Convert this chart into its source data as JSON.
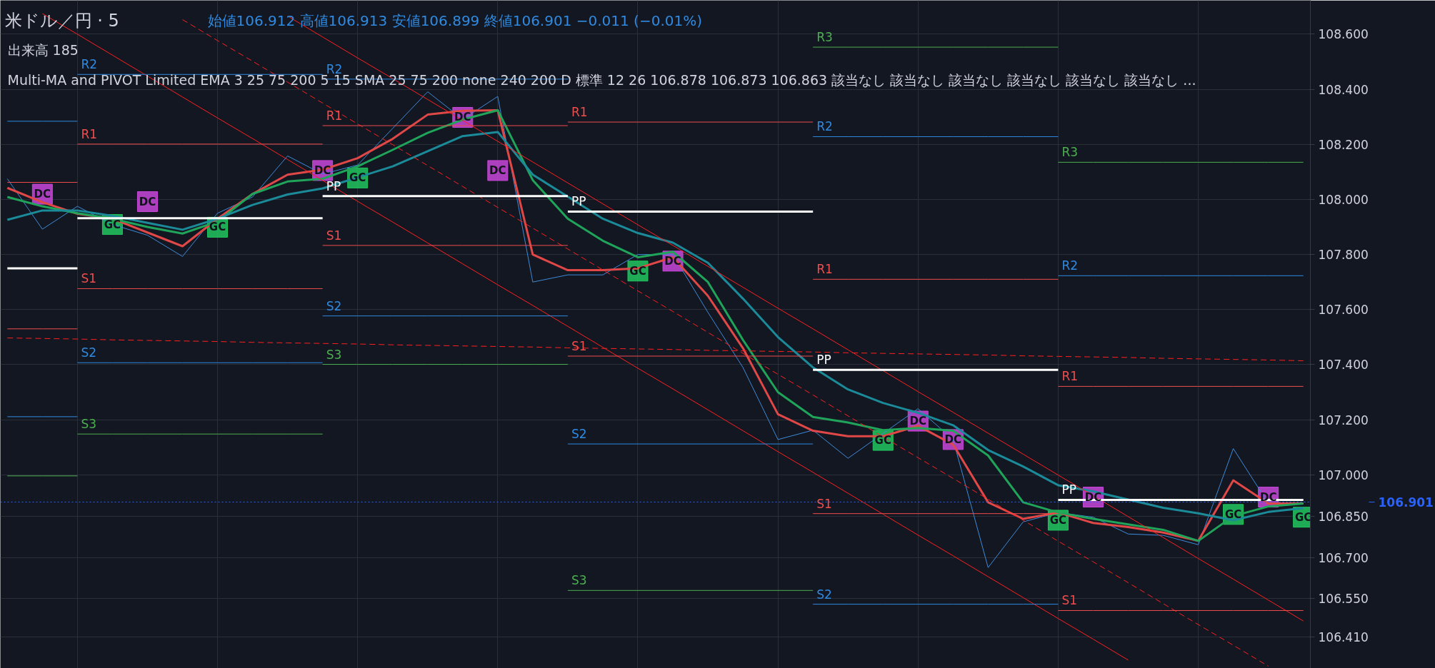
{
  "chart_data": {
    "type": "line",
    "title": "米ドル／円 · 5",
    "subtitle": "始値106.912 高値106.913 安値106.899 終値106.901 −0.011 (−0.01%)",
    "annotations": [
      "出来高 185",
      "Multi-MA and PIVOT Limited EMA 3 25 75 200 5 15 SMA 25 75 200 none 240 200 D 標準 12 26 106.878 106.873 106.863 該当なし 該当なし 該当なし 該当なし 該当なし 該当なし ..."
    ],
    "categories": [
      null,
      null,
      null,
      null,
      null,
      null,
      null,
      null,
      null,
      null,
      null,
      null,
      null,
      null,
      null,
      null,
      null,
      null,
      null,
      null,
      null,
      null,
      null,
      null,
      null,
      null,
      null,
      null,
      null,
      null,
      null,
      null,
      null,
      null,
      null,
      null,
      null,
      null
    ],
    "ylim": [
      106.297,
      108.723
    ],
    "yticks": [
      {
        "value": 106.41,
        "label": "106.410"
      },
      {
        "value": 106.55,
        "label": "106.550"
      },
      {
        "value": 106.7,
        "label": "106.700"
      },
      {
        "value": 106.85,
        "label": "106.850"
      },
      {
        "value": 107.0,
        "label": "107.000"
      },
      {
        "value": 107.2,
        "label": "107.200"
      },
      {
        "value": 107.4,
        "label": "107.400"
      },
      {
        "value": 107.6,
        "label": "107.600"
      },
      {
        "value": 107.8,
        "label": "107.800"
      },
      {
        "value": 108.0,
        "label": "108.000"
      },
      {
        "value": 108.2,
        "label": "108.200"
      },
      {
        "value": 108.4,
        "label": "108.400"
      },
      {
        "value": 108.6,
        "label": "108.600"
      }
    ],
    "tick_labels": "y",
    "grid": true,
    "ref_lines": [
      {
        "axis": "y",
        "value": 106.901,
        "label": "106.901",
        "color": "#2962ff",
        "line_style": "dotted"
      }
    ],
    "series": [
      {
        "color": "#3d8bd9",
        "values": [
          108.075,
          107.892,
          107.975,
          107.909,
          107.87,
          107.793,
          107.95,
          108.009,
          108.158,
          108.092,
          108.125,
          108.258,
          108.391,
          108.291,
          108.374,
          107.7,
          107.726,
          107.726,
          107.8,
          107.8,
          107.59,
          107.39,
          107.128,
          107.162,
          107.06,
          107.15,
          107.24,
          107.128,
          106.663,
          106.829,
          106.863,
          106.846,
          106.785,
          106.78,
          106.746,
          107.095,
          106.896,
          106.896
        ]
      },
      {
        "color": "#e04848",
        "values": [
          108.042,
          107.99,
          107.948,
          107.93,
          107.88,
          107.83,
          107.93,
          108.02,
          108.09,
          108.108,
          108.15,
          108.22,
          108.308,
          108.322,
          108.324,
          107.8,
          107.743,
          107.743,
          107.75,
          107.79,
          107.65,
          107.46,
          107.22,
          107.16,
          107.14,
          107.14,
          107.178,
          107.11,
          106.9,
          106.84,
          106.863,
          106.825,
          106.81,
          106.79,
          106.76,
          106.98,
          106.896,
          106.896
        ]
      },
      {
        "color": "#1fa45a",
        "values": [
          108.009,
          107.975,
          107.95,
          107.93,
          107.9,
          107.876,
          107.92,
          108.02,
          108.065,
          108.075,
          108.12,
          108.18,
          108.242,
          108.29,
          108.324,
          108.07,
          107.93,
          107.85,
          107.79,
          107.81,
          107.7,
          107.49,
          107.3,
          107.21,
          107.19,
          107.162,
          107.17,
          107.16,
          107.07,
          106.9,
          106.863,
          106.84,
          106.82,
          106.8,
          106.76,
          106.85,
          106.885,
          106.896
        ]
      },
      {
        "color": "#1b8a99",
        "values": [
          107.926,
          107.96,
          107.96,
          107.94,
          107.915,
          107.89,
          107.93,
          107.98,
          108.018,
          108.04,
          108.08,
          108.12,
          108.175,
          108.23,
          108.245,
          108.09,
          108.01,
          107.93,
          107.878,
          107.843,
          107.77,
          107.64,
          107.5,
          107.39,
          107.31,
          107.261,
          107.225,
          107.18,
          107.09,
          107.03,
          106.962,
          106.94,
          106.91,
          106.88,
          106.86,
          106.835,
          106.865,
          106.879
        ]
      },
      {
        "color": "#ff1f1f",
        "values": [
          null,
          108.675,
          108.6,
          108.524,
          108.448,
          108.372,
          108.296,
          108.221,
          108.145,
          108.069,
          107.993,
          107.918,
          107.842,
          107.766,
          107.69,
          107.615,
          107.539,
          107.463,
          107.387,
          107.312,
          107.236,
          107.16,
          107.084,
          107.009,
          106.933,
          106.857,
          106.781,
          106.706,
          106.63,
          106.554,
          106.478,
          106.403,
          106.327,
          null,
          null,
          null,
          null,
          null
        ]
      },
      {
        "color": "#ff1f1f",
        "values": [
          null,
          null,
          null,
          null,
          null,
          null,
          null,
          null,
          108.666,
          108.59,
          108.514,
          108.439,
          108.363,
          108.287,
          108.211,
          108.136,
          108.06,
          107.984,
          107.908,
          107.833,
          107.757,
          107.681,
          107.605,
          107.53,
          107.454,
          107.378,
          107.302,
          107.227,
          107.151,
          107.075,
          106.999,
          106.924,
          106.848,
          106.772,
          106.696,
          106.621,
          106.545,
          106.469
        ]
      },
      {
        "color": "#ff1f1f",
        "line_style": "dashed",
        "values": [
          null,
          null,
          null,
          null,
          null,
          108.653,
          108.577,
          108.502,
          108.426,
          108.35,
          108.274,
          108.199,
          108.123,
          108.047,
          107.971,
          107.896,
          107.82,
          107.744,
          107.668,
          107.593,
          107.517,
          107.441,
          107.365,
          107.29,
          107.214,
          107.138,
          107.062,
          106.987,
          106.911,
          106.835,
          106.759,
          106.684,
          106.608,
          106.532,
          106.456,
          106.381,
          106.305,
          null
        ]
      },
      {
        "color": "#ff1f1f",
        "line_style": "dashed",
        "values": [
          107.497,
          107.495,
          107.493,
          107.49,
          107.488,
          107.486,
          107.484,
          107.481,
          107.479,
          107.477,
          107.475,
          107.472,
          107.47,
          107.468,
          107.466,
          107.464,
          107.461,
          107.459,
          107.457,
          107.455,
          107.452,
          107.45,
          107.448,
          107.446,
          107.443,
          107.441,
          107.439,
          107.437,
          107.435,
          107.432,
          107.43,
          107.428,
          107.426,
          107.423,
          107.421,
          107.419,
          107.417,
          107.414
        ]
      },
      {
        "color": "#ffffff",
        "values": [
          107.75,
          107.75,
          107.75,
          null,
          null,
          null,
          null,
          null,
          null,
          null,
          null,
          null,
          null,
          null,
          null,
          null,
          null,
          null,
          null,
          null,
          null,
          null,
          null,
          null,
          null,
          null,
          null,
          null,
          null,
          null,
          null,
          null,
          null,
          null,
          null,
          null,
          null,
          null
        ]
      },
      {
        "color": "#f04d4d",
        "values": [
          108.062,
          108.062,
          108.062,
          null,
          null,
          null,
          null,
          null,
          null,
          null,
          null,
          null,
          null,
          null,
          null,
          null,
          null,
          null,
          null,
          null,
          null,
          null,
          null,
          null,
          null,
          null,
          null,
          null,
          null,
          null,
          null,
          null,
          null,
          null,
          null,
          null,
          null,
          null
        ]
      },
      {
        "color": "#f04d4d",
        "values": [
          107.53,
          107.53,
          107.53,
          null,
          null,
          null,
          null,
          null,
          null,
          null,
          null,
          null,
          null,
          null,
          null,
          null,
          null,
          null,
          null,
          null,
          null,
          null,
          null,
          null,
          null,
          null,
          null,
          null,
          null,
          null,
          null,
          null,
          null,
          null,
          null,
          null,
          null,
          null
        ]
      },
      {
        "color": "#2f8ae0",
        "values": [
          108.284,
          108.284,
          108.284,
          null,
          null,
          null,
          null,
          null,
          null,
          null,
          null,
          null,
          null,
          null,
          null,
          null,
          null,
          null,
          null,
          null,
          null,
          null,
          null,
          null,
          null,
          null,
          null,
          null,
          null,
          null,
          null,
          null,
          null,
          null,
          null,
          null,
          null,
          null
        ]
      },
      {
        "color": "#2f8ae0",
        "values": [
          107.211,
          107.211,
          107.211,
          null,
          null,
          null,
          null,
          null,
          null,
          null,
          null,
          null,
          null,
          null,
          null,
          null,
          null,
          null,
          null,
          null,
          null,
          null,
          null,
          null,
          null,
          null,
          null,
          null,
          null,
          null,
          null,
          null,
          null,
          null,
          null,
          null,
          null,
          null
        ]
      },
      {
        "color": "#4caf50",
        "values": [
          106.996,
          106.996,
          106.996,
          null,
          null,
          null,
          null,
          null,
          null,
          null,
          null,
          null,
          null,
          null,
          null,
          null,
          null,
          null,
          null,
          null,
          null,
          null,
          null,
          null,
          null,
          null,
          null,
          null,
          null,
          null,
          null,
          null,
          null,
          null,
          null,
          null,
          null,
          null
        ]
      },
      {
        "name": "R2",
        "color": "#2f8ae0",
        "values": [
          null,
          null,
          108.454,
          108.454,
          108.454,
          108.454,
          108.454,
          108.454,
          108.454,
          108.454,
          null,
          null,
          null,
          null,
          null,
          null,
          null,
          null,
          null,
          null,
          null,
          null,
          null,
          null,
          null,
          null,
          null,
          null,
          null,
          null,
          null,
          null,
          null,
          null,
          null,
          null,
          null,
          null
        ]
      },
      {
        "name": "R1",
        "color": "#f04d4d",
        "values": [
          null,
          null,
          108.201,
          108.201,
          108.201,
          108.201,
          108.201,
          108.201,
          108.201,
          108.201,
          null,
          null,
          null,
          null,
          null,
          null,
          null,
          null,
          null,
          null,
          null,
          null,
          null,
          null,
          null,
          null,
          null,
          null,
          null,
          null,
          null,
          null,
          null,
          null,
          null,
          null,
          null,
          null
        ]
      },
      {
        "color": "#ffffff",
        "values": [
          null,
          null,
          107.932,
          107.932,
          107.932,
          107.932,
          107.932,
          107.932,
          107.932,
          107.932,
          null,
          null,
          null,
          null,
          null,
          null,
          null,
          null,
          null,
          null,
          null,
          null,
          null,
          null,
          null,
          null,
          null,
          null,
          null,
          null,
          null,
          null,
          null,
          null,
          null,
          null,
          null,
          null
        ]
      },
      {
        "name": "S1",
        "color": "#f04d4d",
        "values": [
          null,
          null,
          107.676,
          107.676,
          107.676,
          107.676,
          107.676,
          107.676,
          107.676,
          107.676,
          null,
          null,
          null,
          null,
          null,
          null,
          null,
          null,
          null,
          null,
          null,
          null,
          null,
          null,
          null,
          null,
          null,
          null,
          null,
          null,
          null,
          null,
          null,
          null,
          null,
          null,
          null,
          null
        ]
      },
      {
        "name": "S2",
        "color": "#2f8ae0",
        "values": [
          null,
          null,
          107.407,
          107.407,
          107.407,
          107.407,
          107.407,
          107.407,
          107.407,
          107.407,
          null,
          null,
          null,
          null,
          null,
          null,
          null,
          null,
          null,
          null,
          null,
          null,
          null,
          null,
          null,
          null,
          null,
          null,
          null,
          null,
          null,
          null,
          null,
          null,
          null,
          null,
          null,
          null
        ]
      },
      {
        "name": "S3",
        "color": "#4caf50",
        "values": [
          null,
          null,
          107.148,
          107.148,
          107.148,
          107.148,
          107.148,
          107.148,
          107.148,
          107.148,
          null,
          null,
          null,
          null,
          null,
          null,
          null,
          null,
          null,
          null,
          null,
          null,
          null,
          null,
          null,
          null,
          null,
          null,
          null,
          null,
          null,
          null,
          null,
          null,
          null,
          null,
          null,
          null
        ]
      },
      {
        "name": "R2",
        "color": "#2f8ae0",
        "values": [
          null,
          null,
          null,
          null,
          null,
          null,
          null,
          null,
          null,
          108.437,
          108.437,
          108.437,
          108.437,
          108.437,
          108.437,
          108.437,
          108.437,
          null,
          null,
          null,
          null,
          null,
          null,
          null,
          null,
          null,
          null,
          null,
          null,
          null,
          null,
          null,
          null,
          null,
          null,
          null,
          null,
          null
        ]
      },
      {
        "name": "R1",
        "color": "#f04d4d",
        "values": [
          null,
          null,
          null,
          null,
          null,
          null,
          null,
          null,
          null,
          108.268,
          108.268,
          108.268,
          108.268,
          108.268,
          108.268,
          108.268,
          108.268,
          null,
          null,
          null,
          null,
          null,
          null,
          null,
          null,
          null,
          null,
          null,
          null,
          null,
          null,
          null,
          null,
          null,
          null,
          null,
          null,
          null
        ]
      },
      {
        "name": "PP",
        "color": "#ffffff",
        "values": [
          null,
          null,
          null,
          null,
          null,
          null,
          null,
          null,
          null,
          108.012,
          108.012,
          108.012,
          108.012,
          108.012,
          108.012,
          108.012,
          108.012,
          null,
          null,
          null,
          null,
          null,
          null,
          null,
          null,
          null,
          null,
          null,
          null,
          null,
          null,
          null,
          null,
          null,
          null,
          null,
          null,
          null
        ]
      },
      {
        "name": "S1",
        "color": "#f04d4d",
        "values": [
          null,
          null,
          null,
          null,
          null,
          null,
          null,
          null,
          null,
          107.833,
          107.833,
          107.833,
          107.833,
          107.833,
          107.833,
          107.833,
          107.833,
          null,
          null,
          null,
          null,
          null,
          null,
          null,
          null,
          null,
          null,
          null,
          null,
          null,
          null,
          null,
          null,
          null,
          null,
          null,
          null,
          null
        ]
      },
      {
        "name": "S2",
        "color": "#2f8ae0",
        "values": [
          null,
          null,
          null,
          null,
          null,
          null,
          null,
          null,
          null,
          107.577,
          107.577,
          107.577,
          107.577,
          107.577,
          107.577,
          107.577,
          107.577,
          null,
          null,
          null,
          null,
          null,
          null,
          null,
          null,
          null,
          null,
          null,
          null,
          null,
          null,
          null,
          null,
          null,
          null,
          null,
          null,
          null
        ]
      },
      {
        "name": "S3",
        "color": "#4caf50",
        "values": [
          null,
          null,
          null,
          null,
          null,
          null,
          null,
          null,
          null,
          107.401,
          107.401,
          107.401,
          107.401,
          107.401,
          107.401,
          107.401,
          107.401,
          null,
          null,
          null,
          null,
          null,
          null,
          null,
          null,
          null,
          null,
          null,
          null,
          null,
          null,
          null,
          null,
          null,
          null,
          null,
          null,
          null
        ]
      },
      {
        "name": "R1",
        "color": "#f04d4d",
        "values": [
          null,
          null,
          null,
          null,
          null,
          null,
          null,
          null,
          null,
          null,
          null,
          null,
          null,
          null,
          null,
          null,
          108.281,
          108.281,
          108.281,
          108.281,
          108.281,
          108.281,
          108.281,
          108.281,
          null,
          null,
          null,
          null,
          null,
          null,
          null,
          null,
          null,
          null,
          null,
          null,
          null,
          null
        ]
      },
      {
        "name": "PP",
        "color": "#ffffff",
        "values": [
          null,
          null,
          null,
          null,
          null,
          null,
          null,
          null,
          null,
          null,
          null,
          null,
          null,
          null,
          null,
          null,
          107.956,
          107.956,
          107.956,
          107.956,
          107.956,
          107.956,
          107.956,
          107.956,
          null,
          null,
          null,
          null,
          null,
          null,
          null,
          null,
          null,
          null,
          null,
          null,
          null,
          null
        ]
      },
      {
        "name": "S1",
        "color": "#f04d4d",
        "values": [
          null,
          null,
          null,
          null,
          null,
          null,
          null,
          null,
          null,
          null,
          null,
          null,
          null,
          null,
          null,
          null,
          107.431,
          107.431,
          107.431,
          107.431,
          107.431,
          107.431,
          107.431,
          107.431,
          null,
          null,
          null,
          null,
          null,
          null,
          null,
          null,
          null,
          null,
          null,
          null,
          null,
          null
        ]
      },
      {
        "name": "S2",
        "color": "#2f8ae0",
        "values": [
          null,
          null,
          null,
          null,
          null,
          null,
          null,
          null,
          null,
          null,
          null,
          null,
          null,
          null,
          null,
          null,
          107.112,
          107.112,
          107.112,
          107.112,
          107.112,
          107.112,
          107.112,
          107.112,
          null,
          null,
          null,
          null,
          null,
          null,
          null,
          null,
          null,
          null,
          null,
          null,
          null,
          null
        ]
      },
      {
        "name": "S3",
        "color": "#4caf50",
        "values": [
          null,
          null,
          null,
          null,
          null,
          null,
          null,
          null,
          null,
          null,
          null,
          null,
          null,
          null,
          null,
          null,
          106.58,
          106.58,
          106.58,
          106.58,
          106.58,
          106.58,
          106.58,
          106.58,
          null,
          null,
          null,
          null,
          null,
          null,
          null,
          null,
          null,
          null,
          null,
          null,
          null,
          null
        ]
      },
      {
        "name": "R3",
        "color": "#4caf50",
        "values": [
          null,
          null,
          null,
          null,
          null,
          null,
          null,
          null,
          null,
          null,
          null,
          null,
          null,
          null,
          null,
          null,
          null,
          null,
          null,
          null,
          null,
          null,
          null,
          108.553,
          108.553,
          108.553,
          108.553,
          108.553,
          108.553,
          108.553,
          108.553,
          null,
          null,
          null,
          null,
          null,
          null,
          null
        ]
      },
      {
        "name": "R2",
        "color": "#2f8ae0",
        "values": [
          null,
          null,
          null,
          null,
          null,
          null,
          null,
          null,
          null,
          null,
          null,
          null,
          null,
          null,
          null,
          null,
          null,
          null,
          null,
          null,
          null,
          null,
          null,
          108.228,
          108.228,
          108.228,
          108.228,
          108.228,
          108.228,
          108.228,
          108.228,
          null,
          null,
          null,
          null,
          null,
          null,
          null
        ]
      },
      {
        "name": "R1",
        "color": "#f04d4d",
        "values": [
          null,
          null,
          null,
          null,
          null,
          null,
          null,
          null,
          null,
          null,
          null,
          null,
          null,
          null,
          null,
          null,
          null,
          null,
          null,
          null,
          null,
          null,
          null,
          107.71,
          107.71,
          107.71,
          107.71,
          107.71,
          107.71,
          107.71,
          107.71,
          null,
          null,
          null,
          null,
          null,
          null,
          null
        ]
      },
      {
        "name": "PP",
        "color": "#ffffff",
        "values": [
          null,
          null,
          null,
          null,
          null,
          null,
          null,
          null,
          null,
          null,
          null,
          null,
          null,
          null,
          null,
          null,
          null,
          null,
          null,
          null,
          null,
          null,
          null,
          107.381,
          107.381,
          107.381,
          107.381,
          107.381,
          107.381,
          107.381,
          107.381,
          null,
          null,
          null,
          null,
          null,
          null,
          null
        ]
      },
      {
        "name": "S1",
        "color": "#f04d4d",
        "values": [
          null,
          null,
          null,
          null,
          null,
          null,
          null,
          null,
          null,
          null,
          null,
          null,
          null,
          null,
          null,
          null,
          null,
          null,
          null,
          null,
          null,
          null,
          null,
          106.859,
          106.859,
          106.859,
          106.859,
          106.859,
          106.859,
          106.859,
          106.859,
          null,
          null,
          null,
          null,
          null,
          null,
          null
        ]
      },
      {
        "name": "S2",
        "color": "#2f8ae0",
        "values": [
          null,
          null,
          null,
          null,
          null,
          null,
          null,
          null,
          null,
          null,
          null,
          null,
          null,
          null,
          null,
          null,
          null,
          null,
          null,
          null,
          null,
          null,
          null,
          106.53,
          106.53,
          106.53,
          106.53,
          106.53,
          106.53,
          106.53,
          106.53,
          null,
          null,
          null,
          null,
          null,
          null,
          null
        ]
      },
      {
        "name": "R3",
        "color": "#4caf50",
        "values": [
          null,
          null,
          null,
          null,
          null,
          null,
          null,
          null,
          null,
          null,
          null,
          null,
          null,
          null,
          null,
          null,
          null,
          null,
          null,
          null,
          null,
          null,
          null,
          null,
          null,
          null,
          null,
          null,
          null,
          null,
          108.135,
          108.135,
          108.135,
          108.135,
          108.135,
          108.135,
          108.135,
          108.135
        ]
      },
      {
        "name": "R2",
        "color": "#2f8ae0",
        "values": [
          null,
          null,
          null,
          null,
          null,
          null,
          null,
          null,
          null,
          null,
          null,
          null,
          null,
          null,
          null,
          null,
          null,
          null,
          null,
          null,
          null,
          null,
          null,
          null,
          null,
          null,
          null,
          null,
          null,
          null,
          107.723,
          107.723,
          107.723,
          107.723,
          107.723,
          107.723,
          107.723,
          107.723
        ]
      },
      {
        "name": "R1",
        "color": "#f04d4d",
        "values": [
          null,
          null,
          null,
          null,
          null,
          null,
          null,
          null,
          null,
          null,
          null,
          null,
          null,
          null,
          null,
          null,
          null,
          null,
          null,
          null,
          null,
          null,
          null,
          null,
          null,
          null,
          null,
          null,
          null,
          null,
          107.321,
          107.321,
          107.321,
          107.321,
          107.321,
          107.321,
          107.321,
          107.321
        ]
      },
      {
        "name": "PP",
        "color": "#ffffff",
        "values": [
          null,
          null,
          null,
          null,
          null,
          null,
          null,
          null,
          null,
          null,
          null,
          null,
          null,
          null,
          null,
          null,
          null,
          null,
          null,
          null,
          null,
          null,
          null,
          null,
          null,
          null,
          null,
          null,
          null,
          null,
          106.909,
          106.909,
          106.909,
          106.909,
          106.909,
          106.909,
          106.909,
          106.909
        ]
      },
      {
        "name": "S1",
        "color": "#f04d4d",
        "values": [
          null,
          null,
          null,
          null,
          null,
          null,
          null,
          null,
          null,
          null,
          null,
          null,
          null,
          null,
          null,
          null,
          null,
          null,
          null,
          null,
          null,
          null,
          null,
          null,
          null,
          null,
          null,
          null,
          null,
          null,
          106.507,
          106.507,
          106.507,
          106.507,
          106.507,
          106.507,
          106.507,
          106.507
        ]
      },
      {
        "name": "GC",
        "type": "scatter",
        "marker": "square",
        "color": "#22c55e",
        "values": [
          null,
          null,
          null,
          107.909,
          null,
          null,
          107.899,
          null,
          null,
          null,
          108.078,
          null,
          null,
          null,
          null,
          null,
          null,
          null,
          107.74,
          null,
          null,
          null,
          null,
          null,
          null,
          107.125,
          null,
          null,
          null,
          null,
          106.835,
          null,
          null,
          null,
          null,
          106.856,
          null,
          106.846
        ]
      },
      {
        "name": "DC",
        "type": "scatter",
        "marker": "square",
        "color": "#c846d8",
        "values": [
          null,
          108.019,
          null,
          null,
          107.992,
          null,
          null,
          null,
          null,
          108.105,
          null,
          null,
          null,
          108.298,
          108.105,
          null,
          null,
          null,
          null,
          107.776,
          null,
          null,
          null,
          null,
          null,
          null,
          107.195,
          107.128,
          null,
          null,
          null,
          106.919,
          null,
          null,
          null,
          null,
          106.919,
          null
        ]
      }
    ]
  }
}
